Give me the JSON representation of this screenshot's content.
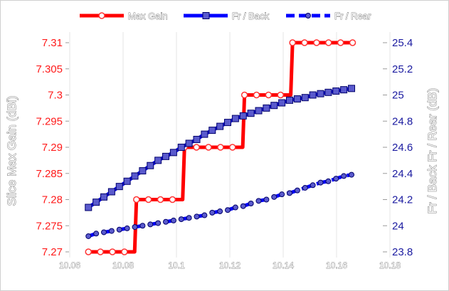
{
  "chart_data": {
    "type": "line",
    "title": "",
    "xlabel": "",
    "ylabel_left": "Slice Max Gain (dBi)",
    "ylabel_right": "Fr / Back  Fr / Rear (dB)",
    "xlim": [
      10.06,
      10.18
    ],
    "x_ticks": [
      10.06,
      10.08,
      10.1,
      10.12,
      10.14,
      10.16,
      10.18
    ],
    "x_tick_labels": [
      "10.06",
      "10.08",
      "10.1",
      "10.12",
      "10.14",
      "10.16",
      "10.18"
    ],
    "ylim_left": [
      7.27,
      7.31
    ],
    "y_left_ticks": [
      7.27,
      7.275,
      7.28,
      7.285,
      7.29,
      7.295,
      7.3,
      7.305,
      7.31
    ],
    "y_left_tick_labels": [
      "7.27",
      "7.275",
      "7.28",
      "7.285",
      "7.29",
      "7.295",
      "7.3",
      "7.305",
      "7.31"
    ],
    "ylim_right": [
      23.8,
      25.4
    ],
    "y_right_ticks": [
      23.8,
      24,
      24.2,
      24.4,
      24.6,
      24.8,
      25,
      25.2,
      25.4
    ],
    "y_right_tick_labels": [
      "23.8",
      "24",
      "24.2",
      "24.4",
      "24.6",
      "24.8",
      "25",
      "25.2",
      "25.4"
    ],
    "grid": "vertical",
    "legend_position": "top",
    "x": [
      10.067,
      10.0699,
      10.0728,
      10.0757,
      10.0786,
      10.0815,
      10.0844,
      10.0873,
      10.0902,
      10.0931,
      10.096,
      10.0989,
      10.1018,
      10.1047,
      10.1076,
      10.1105,
      10.1134,
      10.1163,
      10.1192,
      10.1221,
      10.125,
      10.1279,
      10.1308,
      10.1337,
      10.1366,
      10.1395,
      10.1424,
      10.1453,
      10.1482,
      10.1511,
      10.154,
      10.1569,
      10.1598,
      10.1627,
      10.1656
    ],
    "series": [
      {
        "name": "Max Gain",
        "axis": "left",
        "color": "#ff0000",
        "marker": "circle",
        "dashed": false,
        "x": [
          10.067,
          10.0715,
          10.076,
          10.0805,
          10.085,
          10.0895,
          10.094,
          10.0985,
          10.103,
          10.1075,
          10.112,
          10.1165,
          10.121,
          10.1255,
          10.13,
          10.1345,
          10.139,
          10.1435,
          10.148,
          10.1525,
          10.157,
          10.1615,
          10.166
        ],
        "values": [
          7.27,
          7.27,
          7.27,
          7.27,
          7.28,
          7.28,
          7.28,
          7.28,
          7.29,
          7.29,
          7.29,
          7.29,
          7.29,
          7.3,
          7.3,
          7.3,
          7.3,
          7.31,
          7.31,
          7.31,
          7.31,
          7.31,
          7.31
        ]
      },
      {
        "name": "Fr / Back",
        "axis": "right",
        "color": "#0000ff",
        "marker": "square",
        "dashed": false,
        "values": [
          24.14,
          24.18,
          24.22,
          24.26,
          24.3,
          24.34,
          24.38,
          24.42,
          24.46,
          24.5,
          24.53,
          24.56,
          24.6,
          24.63,
          24.66,
          24.7,
          24.73,
          24.76,
          24.79,
          24.82,
          24.84,
          24.86,
          24.88,
          24.9,
          24.92,
          24.94,
          24.96,
          24.97,
          24.98,
          25.0,
          25.01,
          25.02,
          25.03,
          25.04,
          25.05
        ]
      },
      {
        "name": "Fr / Rear",
        "axis": "right",
        "color": "#0000ff",
        "marker": "circle",
        "dashed": true,
        "values": [
          23.92,
          23.94,
          23.95,
          23.96,
          23.97,
          23.98,
          23.99,
          24.0,
          24.01,
          24.02,
          24.03,
          24.04,
          24.05,
          24.06,
          24.07,
          24.08,
          24.1,
          24.11,
          24.12,
          24.14,
          24.15,
          24.17,
          24.19,
          24.2,
          24.22,
          24.24,
          24.25,
          24.27,
          24.29,
          24.31,
          24.33,
          24.34,
          24.36,
          24.38,
          24.39
        ]
      }
    ]
  }
}
